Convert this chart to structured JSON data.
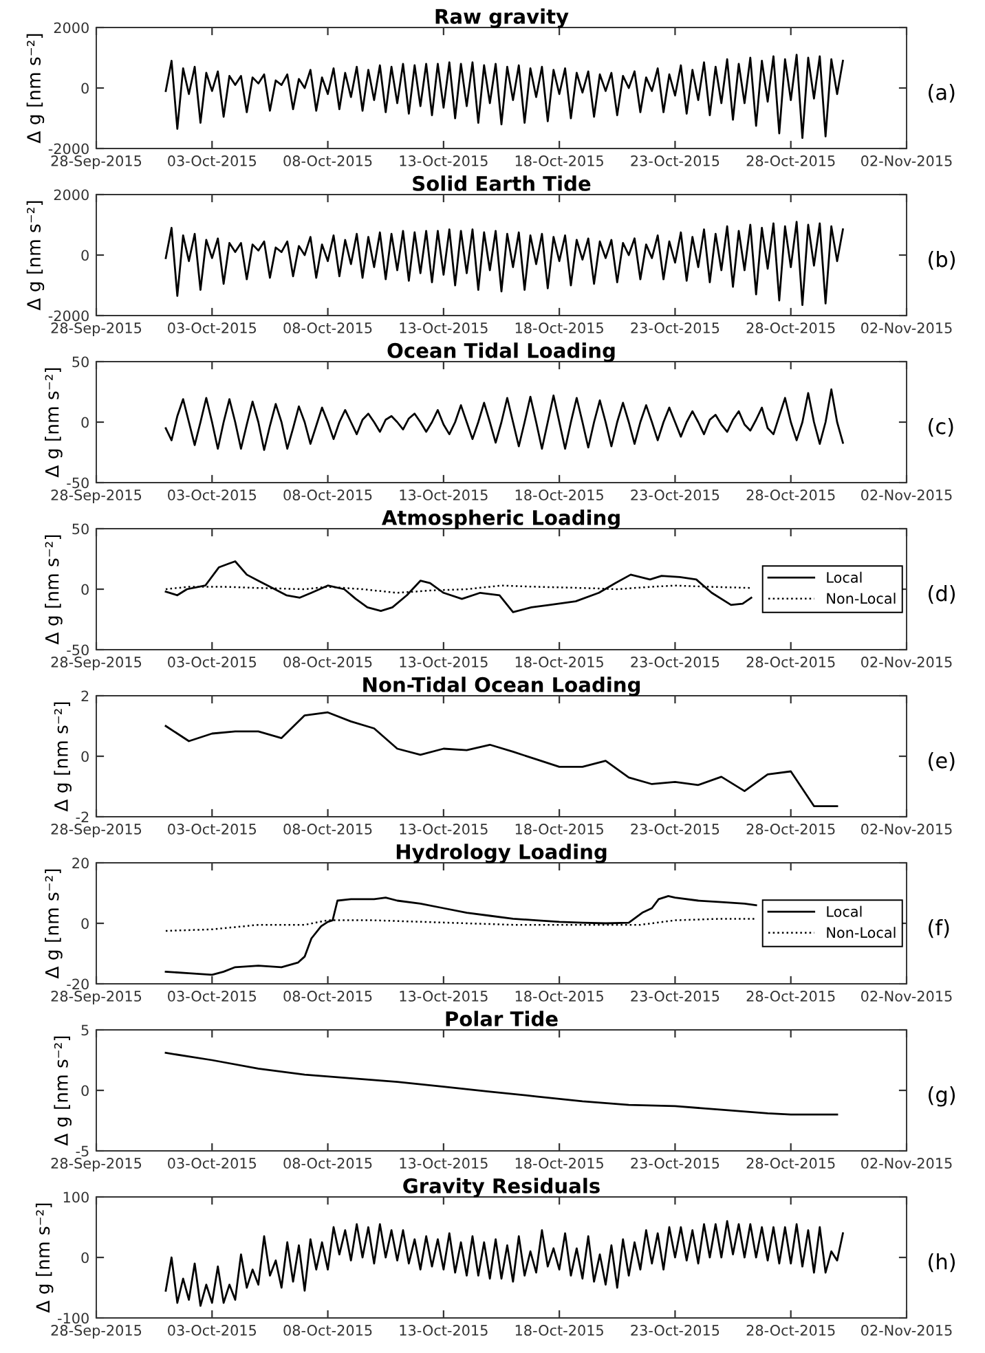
{
  "chart_data": [
    {
      "type": "line",
      "title": "Raw gravity",
      "ylabel": "Δ g [nm s⁻²]",
      "annotations": [
        "(a)"
      ],
      "xlim": [
        "2015-09-28",
        "2015-11-02"
      ],
      "xticks": [
        {
          "value": "2015-09-28",
          "label": "28-Sep-2015"
        },
        {
          "value": "2015-10-03",
          "label": "03-Oct-2015"
        },
        {
          "value": "2015-10-08",
          "label": "08-Oct-2015"
        },
        {
          "value": "2015-10-13",
          "label": "13-Oct-2015"
        },
        {
          "value": "2015-10-18",
          "label": "18-Oct-2015"
        },
        {
          "value": "2015-10-23",
          "label": "23-Oct-2015"
        },
        {
          "value": "2015-10-28",
          "label": "28-Oct-2015"
        },
        {
          "value": "2015-11-02",
          "label": "02-Nov-2015"
        }
      ],
      "ylim": [
        -2000,
        2000
      ],
      "yticks": [
        -2000,
        0,
        2000
      ],
      "x": [
        "2015-10-01T00:00",
        "2015-10-01T06:00",
        "2015-10-01T12:00",
        "2015-10-01T18:00",
        "2015-10-02T00:00",
        "2015-10-02T06:00",
        "2015-10-02T12:00",
        "2015-10-02T18:00",
        "2015-10-03T00:00",
        "2015-10-03T06:00",
        "2015-10-03T12:00",
        "2015-10-03T18:00",
        "2015-10-04T00:00",
        "2015-10-04T06:00",
        "2015-10-04T12:00",
        "2015-10-04T18:00",
        "2015-10-05T00:00",
        "2015-10-05T06:00",
        "2015-10-05T12:00",
        "2015-10-05T18:00",
        "2015-10-06T00:00",
        "2015-10-06T06:00",
        "2015-10-06T12:00",
        "2015-10-06T18:00",
        "2015-10-07T00:00",
        "2015-10-07T06:00",
        "2015-10-07T12:00",
        "2015-10-07T18:00",
        "2015-10-08T00:00",
        "2015-10-08T06:00",
        "2015-10-08T12:00",
        "2015-10-08T18:00",
        "2015-10-09T00:00",
        "2015-10-09T06:00",
        "2015-10-09T12:00",
        "2015-10-09T18:00",
        "2015-10-10T00:00",
        "2015-10-10T06:00",
        "2015-10-10T12:00",
        "2015-10-10T18:00",
        "2015-10-11T00:00",
        "2015-10-11T06:00",
        "2015-10-11T12:00",
        "2015-10-11T18:00",
        "2015-10-12T00:00",
        "2015-10-12T06:00",
        "2015-10-12T12:00",
        "2015-10-12T18:00",
        "2015-10-13T00:00",
        "2015-10-13T06:00",
        "2015-10-13T12:00",
        "2015-10-13T18:00",
        "2015-10-14T00:00",
        "2015-10-14T06:00",
        "2015-10-14T12:00",
        "2015-10-14T18:00",
        "2015-10-15T00:00",
        "2015-10-15T06:00",
        "2015-10-15T12:00",
        "2015-10-15T18:00",
        "2015-10-16T00:00",
        "2015-10-16T06:00",
        "2015-10-16T12:00",
        "2015-10-16T18:00",
        "2015-10-17T00:00",
        "2015-10-17T06:00",
        "2015-10-17T12:00",
        "2015-10-17T18:00",
        "2015-10-18T00:00",
        "2015-10-18T06:00",
        "2015-10-18T12:00",
        "2015-10-18T18:00",
        "2015-10-19T00:00",
        "2015-10-19T06:00",
        "2015-10-19T12:00",
        "2015-10-19T18:00",
        "2015-10-20T00:00",
        "2015-10-20T06:00",
        "2015-10-20T12:00",
        "2015-10-20T18:00",
        "2015-10-21T00:00",
        "2015-10-21T06:00",
        "2015-10-21T12:00",
        "2015-10-21T18:00",
        "2015-10-22T00:00",
        "2015-10-22T06:00",
        "2015-10-22T12:00",
        "2015-10-22T18:00",
        "2015-10-23T00:00",
        "2015-10-23T06:00",
        "2015-10-23T12:00",
        "2015-10-23T18:00",
        "2015-10-24T00:00",
        "2015-10-24T06:00",
        "2015-10-24T12:00",
        "2015-10-24T18:00",
        "2015-10-25T00:00",
        "2015-10-25T06:00",
        "2015-10-25T12:00",
        "2015-10-25T18:00",
        "2015-10-26T00:00",
        "2015-10-26T06:00",
        "2015-10-26T12:00",
        "2015-10-26T18:00",
        "2015-10-27T00:00",
        "2015-10-27T06:00",
        "2015-10-27T12:00",
        "2015-10-27T18:00",
        "2015-10-28T00:00",
        "2015-10-28T06:00",
        "2015-10-28T12:00",
        "2015-10-28T18:00",
        "2015-10-29T00:00",
        "2015-10-29T06:00",
        "2015-10-29T12:00",
        "2015-10-29T18:00",
        "2015-10-30T00:00",
        "2015-10-30T06:00"
      ],
      "series": [
        {
          "color": "#000000",
          "values": [
            -100,
            900,
            -1350,
            650,
            -200,
            700,
            -1150,
            500,
            -100,
            550,
            -950,
            400,
            100,
            400,
            -800,
            350,
            150,
            450,
            -750,
            250,
            100,
            450,
            -700,
            300,
            0,
            600,
            -750,
            350,
            -200,
            650,
            -700,
            500,
            -300,
            700,
            -750,
            600,
            -400,
            750,
            -800,
            700,
            -500,
            800,
            -850,
            750,
            -600,
            800,
            -900,
            800,
            -650,
            850,
            -1000,
            800,
            -600,
            850,
            -1150,
            750,
            -500,
            800,
            -1200,
            700,
            -400,
            750,
            -1150,
            650,
            -300,
            700,
            -1100,
            600,
            -200,
            650,
            -1000,
            500,
            -150,
            550,
            -950,
            450,
            -100,
            500,
            -900,
            400,
            0,
            550,
            -800,
            350,
            -100,
            650,
            -800,
            450,
            -250,
            750,
            -850,
            600,
            -400,
            850,
            -900,
            700,
            -500,
            950,
            -1050,
            800,
            -500,
            1000,
            -1250,
            900,
            -450,
            1050,
            -1500,
            950,
            -400,
            1100,
            -1650,
            1000,
            -350,
            1050,
            -1600,
            950,
            -200,
            900
          ]
        }
      ]
    },
    {
      "type": "line",
      "title": "Solid Earth Tide",
      "ylabel": "Δ g [nm s⁻²]",
      "annotations": [
        "(b)"
      ],
      "xlim": [
        "2015-09-28",
        "2015-11-02"
      ],
      "xticks": [
        {
          "value": "2015-09-28",
          "label": "28-Sep-2015"
        },
        {
          "value": "2015-10-03",
          "label": "03-Oct-2015"
        },
        {
          "value": "2015-10-08",
          "label": "08-Oct-2015"
        },
        {
          "value": "2015-10-13",
          "label": "13-Oct-2015"
        },
        {
          "value": "2015-10-18",
          "label": "18-Oct-2015"
        },
        {
          "value": "2015-10-23",
          "label": "23-Oct-2015"
        },
        {
          "value": "2015-10-28",
          "label": "28-Oct-2015"
        },
        {
          "value": "2015-11-02",
          "label": "02-Nov-2015"
        }
      ],
      "ylim": [
        -2000,
        2000
      ],
      "yticks": [
        -2000,
        0,
        2000
      ],
      "x": [
        "2015-10-01T00:00",
        "2015-10-01T06:00",
        "2015-10-01T12:00",
        "2015-10-01T18:00",
        "2015-10-02T00:00",
        "2015-10-02T06:00",
        "2015-10-02T12:00",
        "2015-10-02T18:00",
        "2015-10-03T00:00",
        "2015-10-03T06:00",
        "2015-10-03T12:00",
        "2015-10-03T18:00",
        "2015-10-04T00:00",
        "2015-10-04T06:00",
        "2015-10-04T12:00",
        "2015-10-04T18:00",
        "2015-10-05T00:00",
        "2015-10-05T06:00",
        "2015-10-05T12:00",
        "2015-10-05T18:00",
        "2015-10-06T00:00",
        "2015-10-06T06:00",
        "2015-10-06T12:00",
        "2015-10-06T18:00",
        "2015-10-07T00:00",
        "2015-10-07T06:00",
        "2015-10-07T12:00",
        "2015-10-07T18:00",
        "2015-10-08T00:00",
        "2015-10-08T06:00",
        "2015-10-08T12:00",
        "2015-10-08T18:00",
        "2015-10-09T00:00",
        "2015-10-09T06:00",
        "2015-10-09T12:00",
        "2015-10-09T18:00",
        "2015-10-10T00:00",
        "2015-10-10T06:00",
        "2015-10-10T12:00",
        "2015-10-10T18:00",
        "2015-10-11T00:00",
        "2015-10-11T06:00",
        "2015-10-11T12:00",
        "2015-10-11T18:00",
        "2015-10-12T00:00",
        "2015-10-12T06:00",
        "2015-10-12T12:00",
        "2015-10-12T18:00",
        "2015-10-13T00:00",
        "2015-10-13T06:00",
        "2015-10-13T12:00",
        "2015-10-13T18:00",
        "2015-10-14T00:00",
        "2015-10-14T06:00",
        "2015-10-14T12:00",
        "2015-10-14T18:00",
        "2015-10-15T00:00",
        "2015-10-15T06:00",
        "2015-10-15T12:00",
        "2015-10-15T18:00",
        "2015-10-16T00:00",
        "2015-10-16T06:00",
        "2015-10-16T12:00",
        "2015-10-16T18:00",
        "2015-10-17T00:00",
        "2015-10-17T06:00",
        "2015-10-17T12:00",
        "2015-10-17T18:00",
        "2015-10-18T00:00",
        "2015-10-18T06:00",
        "2015-10-18T12:00",
        "2015-10-18T18:00",
        "2015-10-19T00:00",
        "2015-10-19T06:00",
        "2015-10-19T12:00",
        "2015-10-19T18:00",
        "2015-10-20T00:00",
        "2015-10-20T06:00",
        "2015-10-20T12:00",
        "2015-10-20T18:00",
        "2015-10-21T00:00",
        "2015-10-21T06:00",
        "2015-10-21T12:00",
        "2015-10-21T18:00",
        "2015-10-22T00:00",
        "2015-10-22T06:00",
        "2015-10-22T12:00",
        "2015-10-22T18:00",
        "2015-10-23T00:00",
        "2015-10-23T06:00",
        "2015-10-23T12:00",
        "2015-10-23T18:00",
        "2015-10-24T00:00",
        "2015-10-24T06:00",
        "2015-10-24T12:00",
        "2015-10-24T18:00",
        "2015-10-25T00:00",
        "2015-10-25T06:00",
        "2015-10-25T12:00",
        "2015-10-25T18:00",
        "2015-10-26T00:00",
        "2015-10-26T06:00",
        "2015-10-26T12:00",
        "2015-10-26T18:00",
        "2015-10-27T00:00",
        "2015-10-27T06:00",
        "2015-10-27T12:00",
        "2015-10-27T18:00",
        "2015-10-28T00:00",
        "2015-10-28T06:00",
        "2015-10-28T12:00",
        "2015-10-28T18:00",
        "2015-10-29T00:00",
        "2015-10-29T06:00",
        "2015-10-29T12:00",
        "2015-10-29T18:00",
        "2015-10-30T00:00",
        "2015-10-30T06:00"
      ],
      "series": [
        {
          "color": "#000000",
          "values": [
            -100,
            900,
            -1350,
            650,
            -200,
            700,
            -1150,
            500,
            -100,
            550,
            -950,
            400,
            100,
            400,
            -800,
            350,
            150,
            450,
            -750,
            250,
            100,
            450,
            -700,
            300,
            0,
            600,
            -750,
            350,
            -200,
            650,
            -700,
            500,
            -300,
            700,
            -750,
            600,
            -400,
            750,
            -800,
            700,
            -500,
            800,
            -850,
            750,
            -600,
            800,
            -900,
            800,
            -650,
            850,
            -1000,
            800,
            -600,
            850,
            -1150,
            750,
            -500,
            800,
            -1200,
            700,
            -400,
            750,
            -1150,
            650,
            -300,
            700,
            -1100,
            600,
            -200,
            650,
            -1000,
            500,
            -150,
            550,
            -950,
            450,
            -100,
            500,
            -900,
            400,
            0,
            550,
            -800,
            350,
            -100,
            650,
            -800,
            450,
            -250,
            750,
            -850,
            600,
            -400,
            850,
            -900,
            700,
            -500,
            950,
            -1050,
            800,
            -500,
            1000,
            -1300,
            900,
            -450,
            1050,
            -1500,
            950,
            -400,
            1100,
            -1650,
            1000,
            -350,
            1050,
            -1600,
            950,
            -200,
            850
          ]
        }
      ]
    },
    {
      "type": "line",
      "title": "Ocean Tidal Loading",
      "ylabel": "Δ g [nm s⁻²]",
      "annotations": [
        "(c)"
      ],
      "xlim": [
        "2015-09-28",
        "2015-11-02"
      ],
      "xticks": [
        {
          "value": "2015-09-28",
          "label": "28-Sep-2015"
        },
        {
          "value": "2015-10-03",
          "label": "03-Oct-2015"
        },
        {
          "value": "2015-10-08",
          "label": "08-Oct-2015"
        },
        {
          "value": "2015-10-13",
          "label": "13-Oct-2015"
        },
        {
          "value": "2015-10-18",
          "label": "18-Oct-2015"
        },
        {
          "value": "2015-10-23",
          "label": "23-Oct-2015"
        },
        {
          "value": "2015-10-28",
          "label": "28-Oct-2015"
        },
        {
          "value": "2015-11-02",
          "label": "02-Nov-2015"
        }
      ],
      "ylim": [
        -50,
        50
      ],
      "yticks": [
        -50,
        0,
        50
      ],
      "x": [
        "2015-10-01T00:00",
        "2015-10-01T06:00",
        "2015-10-01T12:00",
        "2015-10-01T18:00",
        "2015-10-02T00:00",
        "2015-10-02T06:00",
        "2015-10-02T12:00",
        "2015-10-02T18:00",
        "2015-10-03T00:00",
        "2015-10-03T06:00",
        "2015-10-03T12:00",
        "2015-10-03T18:00",
        "2015-10-04T00:00",
        "2015-10-04T06:00",
        "2015-10-04T12:00",
        "2015-10-04T18:00",
        "2015-10-05T00:00",
        "2015-10-05T06:00",
        "2015-10-05T12:00",
        "2015-10-05T18:00",
        "2015-10-06T00:00",
        "2015-10-06T06:00",
        "2015-10-06T12:00",
        "2015-10-06T18:00",
        "2015-10-07T00:00",
        "2015-10-07T06:00",
        "2015-10-07T12:00",
        "2015-10-07T18:00",
        "2015-10-08T00:00",
        "2015-10-08T06:00",
        "2015-10-08T12:00",
        "2015-10-08T18:00",
        "2015-10-09T00:00",
        "2015-10-09T06:00",
        "2015-10-09T12:00",
        "2015-10-09T18:00",
        "2015-10-10T00:00",
        "2015-10-10T06:00",
        "2015-10-10T12:00",
        "2015-10-10T18:00",
        "2015-10-11T00:00",
        "2015-10-11T06:00",
        "2015-10-11T12:00",
        "2015-10-11T18:00",
        "2015-10-12T00:00",
        "2015-10-12T06:00",
        "2015-10-12T12:00",
        "2015-10-12T18:00",
        "2015-10-13T00:00",
        "2015-10-13T06:00",
        "2015-10-13T12:00",
        "2015-10-13T18:00",
        "2015-10-14T00:00",
        "2015-10-14T06:00",
        "2015-10-14T12:00",
        "2015-10-14T18:00",
        "2015-10-15T00:00",
        "2015-10-15T06:00",
        "2015-10-15T12:00",
        "2015-10-15T18:00",
        "2015-10-16T00:00",
        "2015-10-16T06:00",
        "2015-10-16T12:00",
        "2015-10-16T18:00",
        "2015-10-17T00:00",
        "2015-10-17T06:00",
        "2015-10-17T12:00",
        "2015-10-17T18:00",
        "2015-10-18T00:00",
        "2015-10-18T06:00",
        "2015-10-18T12:00",
        "2015-10-18T18:00",
        "2015-10-19T00:00",
        "2015-10-19T06:00",
        "2015-10-19T12:00",
        "2015-10-19T18:00",
        "2015-10-20T00:00",
        "2015-10-20T06:00",
        "2015-10-20T12:00",
        "2015-10-20T18:00",
        "2015-10-21T00:00",
        "2015-10-21T06:00",
        "2015-10-21T12:00",
        "2015-10-21T18:00",
        "2015-10-22T00:00",
        "2015-10-22T06:00",
        "2015-10-22T12:00",
        "2015-10-22T18:00",
        "2015-10-23T00:00",
        "2015-10-23T06:00",
        "2015-10-23T12:00",
        "2015-10-23T18:00",
        "2015-10-24T00:00",
        "2015-10-24T06:00",
        "2015-10-24T12:00",
        "2015-10-24T18:00",
        "2015-10-25T00:00",
        "2015-10-25T06:00",
        "2015-10-25T12:00",
        "2015-10-25T18:00",
        "2015-10-26T00:00",
        "2015-10-26T06:00",
        "2015-10-26T12:00",
        "2015-10-26T18:00",
        "2015-10-27T00:00",
        "2015-10-27T06:00",
        "2015-10-27T12:00",
        "2015-10-27T18:00",
        "2015-10-28T00:00",
        "2015-10-28T06:00",
        "2015-10-28T12:00",
        "2015-10-28T18:00",
        "2015-10-29T00:00",
        "2015-10-29T06:00",
        "2015-10-29T12:00",
        "2015-10-29T18:00",
        "2015-10-30T00:00",
        "2015-10-30T06:00"
      ],
      "series": [
        {
          "color": "#000000",
          "values": [
            -5,
            -15,
            5,
            19,
            0,
            -19,
            0,
            20,
            0,
            -22,
            0,
            19,
            0,
            -22,
            -2,
            17,
            0,
            -23,
            -3,
            15,
            0,
            -22,
            -5,
            13,
            0,
            -18,
            -3,
            12,
            0,
            -14,
            0,
            10,
            0,
            -10,
            2,
            7,
            0,
            -8,
            2,
            5,
            0,
            -6,
            3,
            7,
            0,
            -8,
            0,
            10,
            -2,
            -10,
            0,
            14,
            0,
            -14,
            0,
            16,
            0,
            -17,
            0,
            20,
            0,
            -20,
            0,
            21,
            0,
            -22,
            0,
            22,
            0,
            -22,
            0,
            20,
            0,
            -21,
            0,
            18,
            0,
            -20,
            0,
            16,
            0,
            -18,
            0,
            14,
            0,
            -15,
            0,
            12,
            0,
            -12,
            0,
            9,
            0,
            -10,
            2,
            6,
            -2,
            -8,
            2,
            9,
            -2,
            -7,
            2,
            12,
            -5,
            -10,
            5,
            20,
            0,
            -15,
            0,
            24,
            0,
            -18,
            0,
            27,
            0,
            -17
          ]
        }
      ]
    },
    {
      "type": "line",
      "title": "Atmospheric Loading",
      "ylabel": "Δ g [nm s⁻²]",
      "annotations": [
        "(d)"
      ],
      "legend": "right",
      "xlim": [
        "2015-09-28",
        "2015-11-02"
      ],
      "xticks": [
        {
          "value": "2015-09-28",
          "label": "28-Sep-2015"
        },
        {
          "value": "2015-10-03",
          "label": "03-Oct-2015"
        },
        {
          "value": "2015-10-08",
          "label": "08-Oct-2015"
        },
        {
          "value": "2015-10-13",
          "label": "13-Oct-2015"
        },
        {
          "value": "2015-10-18",
          "label": "18-Oct-2015"
        },
        {
          "value": "2015-10-23",
          "label": "23-Oct-2015"
        },
        {
          "value": "2015-10-28",
          "label": "28-Oct-2015"
        },
        {
          "value": "2015-11-02",
          "label": "02-Nov-2015"
        }
      ],
      "ylim": [
        -50,
        50
      ],
      "yticks": [
        -50,
        0,
        50
      ],
      "series": [
        {
          "name": "Local",
          "color": "#000000",
          "line_style": "solid",
          "x": [
            "2015-10-01T00:00",
            "2015-10-01T12:00",
            "2015-10-01T22:00",
            "2015-10-02T17:00",
            "2015-10-03T07:00",
            "2015-10-03T17:00",
            "2015-10-04T00:00",
            "2015-10-04T12:00",
            "2015-10-05T00:00",
            "2015-10-05T17:00",
            "2015-10-06T05:00",
            "2015-10-06T19:00",
            "2015-10-07T07:00",
            "2015-10-08T00:00",
            "2015-10-08T17:00",
            "2015-10-09T05:00",
            "2015-10-09T17:00",
            "2015-10-10T07:00",
            "2015-10-10T19:00",
            "2015-10-11T10:00",
            "2015-10-12T00:00",
            "2015-10-12T10:00",
            "2015-10-13T00:00",
            "2015-10-13T19:00",
            "2015-10-14T14:00",
            "2015-10-15T10:00",
            "2015-10-16T00:00",
            "2015-10-16T19:00",
            "2015-10-17T14:00",
            "2015-10-18T17:00",
            "2015-10-19T17:00",
            "2015-10-20T10:00",
            "2015-10-21T02:00",
            "2015-10-21T22:00",
            "2015-10-22T10:00",
            "2015-10-23T05:00",
            "2015-10-23T22:00",
            "2015-10-24T14:00",
            "2015-10-25T10:00",
            "2015-10-25T22:00",
            "2015-10-26T07:00"
          ],
          "values": [
            -2,
            -5,
            0,
            3,
            18,
            21,
            23,
            12,
            7,
            0,
            -5,
            -7,
            -3,
            3,
            0,
            -8,
            -15,
            -18,
            -15,
            -5,
            7,
            5,
            -3,
            -8,
            -3,
            -5,
            -19,
            -15,
            -13,
            -10,
            -3,
            5,
            12,
            8,
            11,
            10,
            8,
            -3,
            -13,
            -12,
            -7
          ]
        },
        {
          "name": "Non-Local",
          "color": "#000000",
          "line_style": "dotted",
          "x": [
            "2015-10-01T00:00",
            "2015-10-02T00:00",
            "2015-10-03T12:00",
            "2015-10-05T00:00",
            "2015-10-07T00:00",
            "2015-10-08T00:00",
            "2015-10-09T12:00",
            "2015-10-11T00:00",
            "2015-10-12T12:00",
            "2015-10-14T00:00",
            "2015-10-15T12:00",
            "2015-10-17T00:00",
            "2015-10-19T00:00",
            "2015-10-20T12:00",
            "2015-10-22T00:00",
            "2015-10-23T00:00",
            "2015-10-24T12:00",
            "2015-10-26T07:00"
          ],
          "values": [
            0,
            2,
            2,
            1,
            0,
            2,
            0,
            -3,
            -1,
            0,
            3,
            2,
            1,
            0,
            2,
            3,
            2,
            1
          ]
        }
      ]
    },
    {
      "type": "line",
      "title": "Non-Tidal Ocean Loading",
      "ylabel": "Δ g [nm s⁻²]",
      "annotations": [
        "(e)"
      ],
      "xlim": [
        "2015-09-28",
        "2015-11-02"
      ],
      "xticks": [
        {
          "value": "2015-09-28",
          "label": "28-Sep-2015"
        },
        {
          "value": "2015-10-03",
          "label": "03-Oct-2015"
        },
        {
          "value": "2015-10-08",
          "label": "08-Oct-2015"
        },
        {
          "value": "2015-10-13",
          "label": "13-Oct-2015"
        },
        {
          "value": "2015-10-18",
          "label": "18-Oct-2015"
        },
        {
          "value": "2015-10-23",
          "label": "23-Oct-2015"
        },
        {
          "value": "2015-10-28",
          "label": "28-Oct-2015"
        },
        {
          "value": "2015-11-02",
          "label": "02-Nov-2015"
        }
      ],
      "ylim": [
        -2,
        2
      ],
      "yticks": [
        -2,
        0,
        2
      ],
      "x": [
        "2015-10-01",
        "2015-10-02",
        "2015-10-03",
        "2015-10-04",
        "2015-10-05",
        "2015-10-06",
        "2015-10-07",
        "2015-10-08",
        "2015-10-09",
        "2015-10-10",
        "2015-10-11",
        "2015-10-12",
        "2015-10-13",
        "2015-10-14",
        "2015-10-15",
        "2015-10-16",
        "2015-10-17",
        "2015-10-18",
        "2015-10-19",
        "2015-10-20",
        "2015-10-21",
        "2015-10-22",
        "2015-10-23",
        "2015-10-24",
        "2015-10-25",
        "2015-10-26",
        "2015-10-27",
        "2015-10-28",
        "2015-10-29",
        "2015-10-30"
      ],
      "series": [
        {
          "color": "#000000",
          "values": [
            1.0,
            0.5,
            0.75,
            0.82,
            0.82,
            0.6,
            1.35,
            1.45,
            1.15,
            0.92,
            0.25,
            0.05,
            0.25,
            0.2,
            0.38,
            0.15,
            -0.1,
            -0.35,
            -0.35,
            -0.15,
            -0.7,
            -0.92,
            -0.85,
            -0.95,
            -0.68,
            -1.15,
            -0.6,
            -0.5,
            -1.65,
            -1.65
          ]
        }
      ]
    },
    {
      "type": "line",
      "title": "Hydrology Loading",
      "ylabel": "Δ g [nm s⁻²]",
      "annotations": [
        "(f)"
      ],
      "legend": "right",
      "xlim": [
        "2015-09-28",
        "2015-11-02"
      ],
      "xticks": [
        {
          "value": "2015-09-28",
          "label": "28-Sep-2015"
        },
        {
          "value": "2015-10-03",
          "label": "03-Oct-2015"
        },
        {
          "value": "2015-10-08",
          "label": "08-Oct-2015"
        },
        {
          "value": "2015-10-13",
          "label": "13-Oct-2015"
        },
        {
          "value": "2015-10-18",
          "label": "18-Oct-2015"
        },
        {
          "value": "2015-10-23",
          "label": "23-Oct-2015"
        },
        {
          "value": "2015-10-28",
          "label": "28-Oct-2015"
        },
        {
          "value": "2015-11-02",
          "label": "02-Nov-2015"
        }
      ],
      "ylim": [
        -20,
        20
      ],
      "yticks": [
        -20,
        0,
        20
      ],
      "series": [
        {
          "name": "Local",
          "color": "#000000",
          "line_style": "solid",
          "x": [
            "2015-10-01T00:00",
            "2015-10-02T00:00",
            "2015-10-03T00:00",
            "2015-10-03T12:00",
            "2015-10-04T00:00",
            "2015-10-05T00:00",
            "2015-10-06T00:00",
            "2015-10-06T17:00",
            "2015-10-07T00:00",
            "2015-10-07T07:00",
            "2015-10-07T17:00",
            "2015-10-08T00:00",
            "2015-10-08T05:00",
            "2015-10-08T10:00",
            "2015-10-09T00:00",
            "2015-10-10T00:00",
            "2015-10-10T12:00",
            "2015-10-11T00:00",
            "2015-10-12T00:00",
            "2015-10-13T00:00",
            "2015-10-14T00:00",
            "2015-10-15T00:00",
            "2015-10-16T00:00",
            "2015-10-17T00:00",
            "2015-10-18T00:00",
            "2015-10-19T00:00",
            "2015-10-20T00:00",
            "2015-10-21T00:00",
            "2015-10-21T14:00",
            "2015-10-22T00:00",
            "2015-10-22T07:00",
            "2015-10-22T17:00",
            "2015-10-23T00:00",
            "2015-10-24T00:00",
            "2015-10-25T00:00",
            "2015-10-26T00:00",
            "2015-10-26T12:00"
          ],
          "values": [
            -16,
            -16.5,
            -17,
            -16,
            -14.5,
            -14,
            -14.5,
            -13,
            -11,
            -5,
            -1,
            0.5,
            1,
            7.5,
            8,
            8,
            8.5,
            7.5,
            6.5,
            5,
            3.5,
            2.5,
            1.5,
            1,
            0.5,
            0.2,
            0,
            0.2,
            3.5,
            5,
            8,
            9,
            8.5,
            7.5,
            7,
            6.5,
            6
          ]
        },
        {
          "name": "Non-Local",
          "color": "#000000",
          "line_style": "dotted",
          "x": [
            "2015-10-01T00:00",
            "2015-10-03T00:00",
            "2015-10-05T00:00",
            "2015-10-07T00:00",
            "2015-10-08T00:00",
            "2015-10-10T00:00",
            "2015-10-12T00:00",
            "2015-10-14T00:00",
            "2015-10-16T00:00",
            "2015-10-18T00:00",
            "2015-10-20T00:00",
            "2015-10-21T12:00",
            "2015-10-23T00:00",
            "2015-10-25T00:00",
            "2015-10-26T12:00"
          ],
          "values": [
            -2.5,
            -2,
            -0.5,
            -0.5,
            1,
            1,
            0.5,
            0,
            -0.5,
            -0.5,
            -0.5,
            -0.5,
            1,
            1.5,
            1.5
          ]
        }
      ]
    },
    {
      "type": "line",
      "title": "Polar Tide",
      "ylabel": "Δ g [nm s⁻²]",
      "annotations": [
        "(g)"
      ],
      "xlim": [
        "2015-09-28",
        "2015-11-02"
      ],
      "xticks": [
        {
          "value": "2015-09-28",
          "label": "28-Sep-2015"
        },
        {
          "value": "2015-10-03",
          "label": "03-Oct-2015"
        },
        {
          "value": "2015-10-08",
          "label": "08-Oct-2015"
        },
        {
          "value": "2015-10-13",
          "label": "13-Oct-2015"
        },
        {
          "value": "2015-10-18",
          "label": "18-Oct-2015"
        },
        {
          "value": "2015-10-23",
          "label": "23-Oct-2015"
        },
        {
          "value": "2015-10-28",
          "label": "28-Oct-2015"
        },
        {
          "value": "2015-11-02",
          "label": "02-Nov-2015"
        }
      ],
      "ylim": [
        -5,
        5
      ],
      "yticks": [
        -5,
        0,
        5
      ],
      "x": [
        "2015-10-01",
        "2015-10-03",
        "2015-10-05",
        "2015-10-07",
        "2015-10-09",
        "2015-10-11",
        "2015-10-13",
        "2015-10-15",
        "2015-10-17",
        "2015-10-19",
        "2015-10-21",
        "2015-10-23",
        "2015-10-25",
        "2015-10-27",
        "2015-10-28",
        "2015-10-30"
      ],
      "series": [
        {
          "color": "#000000",
          "values": [
            3.1,
            2.5,
            1.8,
            1.3,
            1.0,
            0.7,
            0.3,
            -0.1,
            -0.5,
            -0.9,
            -1.2,
            -1.3,
            -1.6,
            -1.9,
            -2.0,
            -2.0
          ]
        }
      ]
    },
    {
      "type": "line",
      "title": "Gravity Residuals",
      "ylabel": "Δ g [nm s⁻²]",
      "annotations": [
        "(h)"
      ],
      "xlim": [
        "2015-09-28",
        "2015-11-02"
      ],
      "xticks": [
        {
          "value": "2015-09-28",
          "label": "28-Sep-2015"
        },
        {
          "value": "2015-10-03",
          "label": "03-Oct-2015"
        },
        {
          "value": "2015-10-08",
          "label": "08-Oct-2015"
        },
        {
          "value": "2015-10-13",
          "label": "13-Oct-2015"
        },
        {
          "value": "2015-10-18",
          "label": "18-Oct-2015"
        },
        {
          "value": "2015-10-23",
          "label": "23-Oct-2015"
        },
        {
          "value": "2015-10-28",
          "label": "28-Oct-2015"
        },
        {
          "value": "2015-11-02",
          "label": "02-Nov-2015"
        }
      ],
      "ylim": [
        -100,
        100
      ],
      "yticks": [
        -100,
        0,
        100
      ],
      "x": [
        "2015-10-01T00:00",
        "2015-10-01T06:00",
        "2015-10-01T12:00",
        "2015-10-01T18:00",
        "2015-10-02T00:00",
        "2015-10-02T06:00",
        "2015-10-02T12:00",
        "2015-10-02T18:00",
        "2015-10-03T00:00",
        "2015-10-03T06:00",
        "2015-10-03T12:00",
        "2015-10-03T18:00",
        "2015-10-04T00:00",
        "2015-10-04T06:00",
        "2015-10-04T12:00",
        "2015-10-04T18:00",
        "2015-10-05T00:00",
        "2015-10-05T06:00",
        "2015-10-05T12:00",
        "2015-10-05T18:00",
        "2015-10-06T00:00",
        "2015-10-06T06:00",
        "2015-10-06T12:00",
        "2015-10-06T18:00",
        "2015-10-07T00:00",
        "2015-10-07T06:00",
        "2015-10-07T12:00",
        "2015-10-07T18:00",
        "2015-10-08T00:00",
        "2015-10-08T06:00",
        "2015-10-08T12:00",
        "2015-10-08T18:00",
        "2015-10-09T00:00",
        "2015-10-09T06:00",
        "2015-10-09T12:00",
        "2015-10-09T18:00",
        "2015-10-10T00:00",
        "2015-10-10T06:00",
        "2015-10-10T12:00",
        "2015-10-10T18:00",
        "2015-10-11T00:00",
        "2015-10-11T06:00",
        "2015-10-11T12:00",
        "2015-10-11T18:00",
        "2015-10-12T00:00",
        "2015-10-12T06:00",
        "2015-10-12T12:00",
        "2015-10-12T18:00",
        "2015-10-13T00:00",
        "2015-10-13T06:00",
        "2015-10-13T12:00",
        "2015-10-13T18:00",
        "2015-10-14T00:00",
        "2015-10-14T06:00",
        "2015-10-14T12:00",
        "2015-10-14T18:00",
        "2015-10-15T00:00",
        "2015-10-15T06:00",
        "2015-10-15T12:00",
        "2015-10-15T18:00",
        "2015-10-16T00:00",
        "2015-10-16T06:00",
        "2015-10-16T12:00",
        "2015-10-16T18:00",
        "2015-10-17T00:00",
        "2015-10-17T06:00",
        "2015-10-17T12:00",
        "2015-10-17T18:00",
        "2015-10-18T00:00",
        "2015-10-18T06:00",
        "2015-10-18T12:00",
        "2015-10-18T18:00",
        "2015-10-19T00:00",
        "2015-10-19T06:00",
        "2015-10-19T12:00",
        "2015-10-19T18:00",
        "2015-10-20T00:00",
        "2015-10-20T06:00",
        "2015-10-20T12:00",
        "2015-10-20T18:00",
        "2015-10-21T00:00",
        "2015-10-21T06:00",
        "2015-10-21T12:00",
        "2015-10-21T18:00",
        "2015-10-22T00:00",
        "2015-10-22T06:00",
        "2015-10-22T12:00",
        "2015-10-22T18:00",
        "2015-10-23T00:00",
        "2015-10-23T06:00",
        "2015-10-23T12:00",
        "2015-10-23T18:00",
        "2015-10-24T00:00",
        "2015-10-24T06:00",
        "2015-10-24T12:00",
        "2015-10-24T18:00",
        "2015-10-25T00:00",
        "2015-10-25T06:00",
        "2015-10-25T12:00",
        "2015-10-25T18:00",
        "2015-10-26T00:00",
        "2015-10-26T06:00",
        "2015-10-26T12:00",
        "2015-10-26T18:00",
        "2015-10-27T00:00",
        "2015-10-27T06:00",
        "2015-10-27T12:00",
        "2015-10-27T18:00",
        "2015-10-28T00:00",
        "2015-10-28T06:00",
        "2015-10-28T12:00",
        "2015-10-28T18:00",
        "2015-10-29T00:00",
        "2015-10-29T06:00",
        "2015-10-29T12:00",
        "2015-10-29T18:00",
        "2015-10-30T00:00",
        "2015-10-30T06:00"
      ],
      "series": [
        {
          "color": "#000000",
          "values": [
            -55,
            0,
            -75,
            -35,
            -70,
            -10,
            -80,
            -45,
            -75,
            -15,
            -75,
            -45,
            -70,
            5,
            -50,
            -20,
            -45,
            35,
            -30,
            -5,
            -50,
            25,
            -40,
            20,
            -55,
            30,
            -20,
            25,
            -20,
            50,
            5,
            45,
            -5,
            55,
            0,
            50,
            -10,
            55,
            0,
            45,
            -5,
            45,
            -10,
            30,
            -20,
            35,
            -15,
            30,
            -20,
            40,
            -25,
            25,
            -30,
            35,
            -30,
            25,
            -35,
            30,
            -35,
            20,
            -40,
            35,
            -30,
            10,
            -25,
            45,
            -15,
            15,
            -20,
            40,
            -30,
            15,
            -35,
            35,
            -40,
            5,
            -45,
            20,
            -50,
            30,
            -30,
            25,
            -20,
            45,
            -10,
            40,
            -20,
            50,
            0,
            50,
            -5,
            45,
            -10,
            55,
            0,
            55,
            0,
            60,
            5,
            55,
            0,
            55,
            0,
            50,
            -5,
            50,
            -10,
            50,
            -10,
            55,
            -15,
            45,
            -25,
            50,
            -25,
            10,
            -5,
            40
          ]
        }
      ]
    }
  ]
}
